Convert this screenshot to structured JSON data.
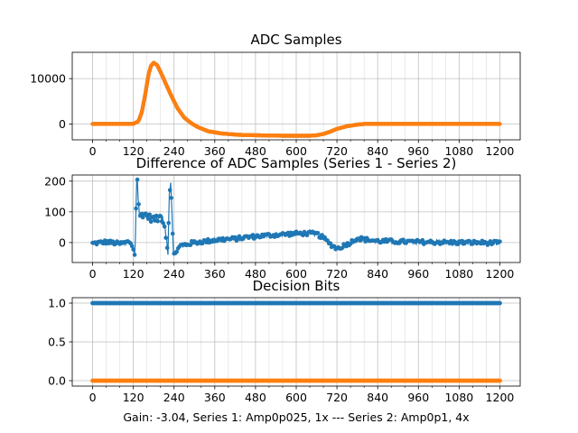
{
  "footer_text": "Gain: -3.04, Series 1: Amp0p025, 1x --- Series 2: Amp0p1, 4x",
  "colors": {
    "series1": "#1f77b4",
    "series2": "#ff7f0e",
    "grid": "#b0b0b0",
    "axes": "#000000"
  },
  "chart_data": [
    {
      "type": "line",
      "title": "ADC Samples",
      "xlim": [
        -60,
        1260
      ],
      "ylim": [
        -3500,
        15800
      ],
      "xticks_major": [
        0,
        120,
        240,
        360,
        480,
        600,
        720,
        840,
        960,
        1080,
        1200
      ],
      "xticks_major_labels": [
        "0",
        "120",
        "240",
        "360",
        "480",
        "600",
        "720",
        "840",
        "960",
        "1080",
        "1200"
      ],
      "yticks": [
        0,
        10000
      ],
      "ytick_labels": [
        "0",
        "10000"
      ],
      "grid": true,
      "series": [
        {
          "name": "Series 1",
          "color": "#1f77b4",
          "points": [
            [
              0,
              0
            ],
            [
              100,
              0
            ],
            [
              120,
              20
            ],
            [
              135,
              600
            ],
            [
              145,
              2600
            ],
            [
              155,
              6500
            ],
            [
              165,
              11000
            ],
            [
              172,
              12800
            ],
            [
              180,
              13500
            ],
            [
              190,
              13000
            ],
            [
              200,
              11500
            ],
            [
              215,
              9000
            ],
            [
              230,
              6500
            ],
            [
              250,
              3500
            ],
            [
              270,
              1400
            ],
            [
              290,
              200
            ],
            [
              310,
              -700
            ],
            [
              340,
              -1600
            ],
            [
              380,
              -2100
            ],
            [
              430,
              -2400
            ],
            [
              480,
              -2500
            ],
            [
              560,
              -2600
            ],
            [
              640,
              -2600
            ],
            [
              660,
              -2500
            ],
            [
              680,
              -2200
            ],
            [
              700,
              -1700
            ],
            [
              720,
              -1100
            ],
            [
              750,
              -500
            ],
            [
              780,
              -150
            ],
            [
              800,
              0
            ],
            [
              840,
              0
            ],
            [
              1200,
              0
            ]
          ]
        },
        {
          "name": "Series 2",
          "color": "#ff7f0e",
          "points": [
            [
              0,
              0
            ],
            [
              100,
              0
            ],
            [
              120,
              20
            ],
            [
              135,
              600
            ],
            [
              145,
              2600
            ],
            [
              155,
              6500
            ],
            [
              165,
              11000
            ],
            [
              172,
              12800
            ],
            [
              180,
              13500
            ],
            [
              190,
              13000
            ],
            [
              200,
              11500
            ],
            [
              215,
              9000
            ],
            [
              230,
              6500
            ],
            [
              250,
              3500
            ],
            [
              270,
              1400
            ],
            [
              290,
              200
            ],
            [
              310,
              -700
            ],
            [
              340,
              -1600
            ],
            [
              380,
              -2100
            ],
            [
              430,
              -2400
            ],
            [
              480,
              -2500
            ],
            [
              560,
              -2600
            ],
            [
              640,
              -2600
            ],
            [
              660,
              -2500
            ],
            [
              680,
              -2200
            ],
            [
              700,
              -1700
            ],
            [
              720,
              -1100
            ],
            [
              750,
              -500
            ],
            [
              780,
              -150
            ],
            [
              800,
              0
            ],
            [
              840,
              0
            ],
            [
              1200,
              0
            ]
          ]
        }
      ]
    },
    {
      "type": "line",
      "title": "Difference of ADC Samples (Series 1 - Series 2)",
      "xlim": [
        -60,
        1260
      ],
      "ylim": [
        -65,
        220
      ],
      "xticks_major": [
        0,
        120,
        240,
        360,
        480,
        600,
        720,
        840,
        960,
        1080,
        1200
      ],
      "xticks_major_labels": [
        "0",
        "120",
        "240",
        "360",
        "480",
        "600",
        "720",
        "840",
        "960",
        "1080",
        "1200"
      ],
      "yticks": [
        0,
        100,
        200
      ],
      "ytick_labels": [
        "0",
        "100",
        "200"
      ],
      "grid": true,
      "series": [
        {
          "name": "Series 1 - Series 2",
          "color": "#1f77b4",
          "points": [
            [
              0,
              -3
            ],
            [
              40,
              2
            ],
            [
              80,
              -4
            ],
            [
              110,
              3
            ],
            [
              125,
              -30
            ],
            [
              130,
              210
            ],
            [
              134,
              150
            ],
            [
              138,
              85
            ],
            [
              150,
              95
            ],
            [
              170,
              80
            ],
            [
              190,
              75
            ],
            [
              200,
              85
            ],
            [
              210,
              70
            ],
            [
              222,
              -30
            ],
            [
              226,
              160
            ],
            [
              230,
              195
            ],
            [
              234,
              90
            ],
            [
              238,
              -40
            ],
            [
              260,
              -10
            ],
            [
              300,
              0
            ],
            [
              340,
              5
            ],
            [
              380,
              10
            ],
            [
              420,
              12
            ],
            [
              460,
              18
            ],
            [
              500,
              22
            ],
            [
              540,
              25
            ],
            [
              580,
              28
            ],
            [
              620,
              30
            ],
            [
              660,
              28
            ],
            [
              680,
              15
            ],
            [
              700,
              -5
            ],
            [
              720,
              -20
            ],
            [
              740,
              -10
            ],
            [
              760,
              0
            ],
            [
              780,
              15
            ],
            [
              800,
              10
            ],
            [
              840,
              5
            ],
            [
              900,
              3
            ],
            [
              960,
              2
            ],
            [
              1020,
              1
            ],
            [
              1080,
              0
            ],
            [
              1140,
              0
            ],
            [
              1200,
              -2
            ]
          ]
        }
      ]
    },
    {
      "type": "scatter",
      "title": "Decision Bits",
      "xlim": [
        -60,
        1260
      ],
      "ylim": [
        -0.07,
        1.07
      ],
      "xticks_major": [
        0,
        120,
        240,
        360,
        480,
        600,
        720,
        840,
        960,
        1080,
        1200
      ],
      "xticks_major_labels": [
        "0",
        "120",
        "240",
        "360",
        "480",
        "600",
        "720",
        "840",
        "960",
        "1080",
        "1200"
      ],
      "yticks": [
        0,
        0.5,
        1
      ],
      "ytick_labels": [
        "0.0",
        "0.5",
        "1.0"
      ],
      "grid": true,
      "series": [
        {
          "name": "Series 1",
          "color": "#1f77b4",
          "y": 1,
          "x_range": [
            0,
            1200
          ]
        },
        {
          "name": "Series 2",
          "color": "#ff7f0e",
          "y": 0,
          "x_range": [
            0,
            1200
          ]
        }
      ]
    }
  ]
}
